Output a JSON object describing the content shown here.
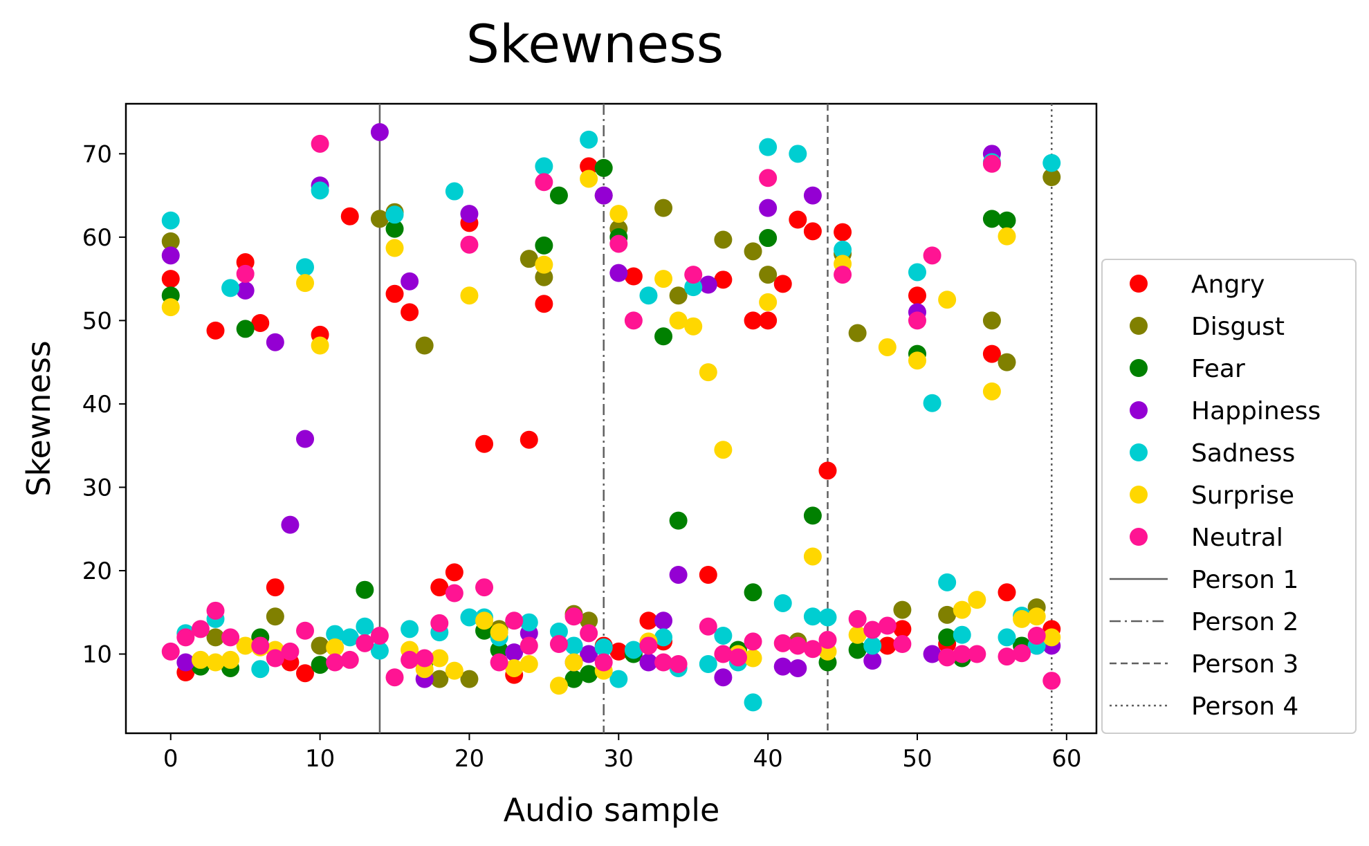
{
  "chart_data": {
    "type": "scatter",
    "title": "Skewness",
    "xlabel": "Audio sample",
    "ylabel": "Skewness",
    "xlim": [
      -3,
      62
    ],
    "ylim": [
      0.5,
      76
    ],
    "xticks": [
      0,
      10,
      20,
      30,
      40,
      50,
      60
    ],
    "yticks": [
      10,
      20,
      30,
      40,
      50,
      60,
      70
    ],
    "grid": false,
    "legend_position": "right-outside",
    "vlines": [
      {
        "name": "Person 1",
        "x": 14,
        "style": "solid"
      },
      {
        "name": "Person 2",
        "x": 29,
        "style": "dashdot"
      },
      {
        "name": "Person 3",
        "x": 44,
        "style": "dashed"
      },
      {
        "name": "Person 4",
        "x": 59,
        "style": "dotted"
      }
    ],
    "series": [
      {
        "name": "Angry",
        "color": "#ff0000",
        "x": [
          0,
          1,
          3,
          5,
          6,
          7,
          8,
          9,
          10,
          12,
          15,
          16,
          18,
          19,
          20,
          21,
          23,
          24,
          25,
          28,
          29,
          30,
          31,
          32,
          33,
          36,
          37,
          39,
          40,
          41,
          42,
          43,
          44,
          45,
          48,
          49,
          50,
          52,
          55,
          56,
          59
        ],
        "y": [
          55,
          7.8,
          48.8,
          57,
          49.7,
          18,
          9,
          7.7,
          48.3,
          62.5,
          53.2,
          51,
          18,
          19.8,
          61.7,
          35.2,
          7.5,
          35.7,
          52,
          68.5,
          11,
          10.3,
          55.3,
          14,
          11.5,
          19.5,
          54.9,
          50,
          50,
          54.4,
          62.1,
          60.7,
          32,
          60.6,
          11,
          13,
          53,
          11.2,
          46,
          17.4,
          13
        ]
      },
      {
        "name": "Disgust",
        "color": "#808000",
        "x": [
          0,
          3,
          7,
          10,
          14,
          15,
          17,
          18,
          20,
          22,
          24,
          25,
          27,
          28,
          29,
          30,
          33,
          34,
          37,
          39,
          40,
          42,
          45,
          46,
          49,
          52,
          55,
          56,
          58,
          59
        ],
        "y": [
          59.5,
          12,
          14.5,
          11,
          62.2,
          63,
          47,
          7,
          7,
          13,
          57.4,
          55.2,
          14.8,
          14,
          65,
          61,
          63.5,
          53,
          59.7,
          58.3,
          55.5,
          11.5,
          58,
          48.5,
          15.3,
          14.7,
          50,
          45,
          15.6,
          67.2
        ]
      },
      {
        "name": "Fear",
        "color": "#008000",
        "x": [
          0,
          2,
          4,
          5,
          6,
          10,
          13,
          15,
          17,
          21,
          22,
          25,
          26,
          27,
          28,
          29,
          30,
          31,
          33,
          34,
          38,
          39,
          40,
          43,
          44,
          46,
          50,
          52,
          53,
          55,
          56,
          57
        ],
        "y": [
          53,
          8.5,
          8.3,
          49,
          12,
          8.7,
          17.7,
          61,
          9,
          12.8,
          10.5,
          59,
          65,
          7,
          7.6,
          68.3,
          60,
          10,
          48.1,
          26,
          10.5,
          17.4,
          59.9,
          26.6,
          9,
          10.5,
          46,
          12,
          9.5,
          62.2,
          62,
          11
        ]
      },
      {
        "name": "Happiness",
        "color": "#9400d3",
        "x": [
          0,
          1,
          5,
          7,
          8,
          9,
          10,
          14,
          16,
          17,
          20,
          23,
          24,
          27,
          28,
          29,
          30,
          32,
          33,
          34,
          36,
          37,
          40,
          41,
          42,
          43,
          47,
          50,
          51,
          55,
          58,
          59
        ],
        "y": [
          57.8,
          9,
          53.6,
          47.4,
          25.5,
          35.8,
          66.2,
          72.6,
          54.7,
          7,
          62.8,
          10.2,
          12.5,
          9,
          10,
          65,
          55.7,
          9,
          14,
          19.5,
          54.3,
          7.2,
          63.5,
          8.5,
          8.3,
          65,
          9.2,
          51,
          10,
          70,
          11,
          11
        ]
      },
      {
        "name": "Sadness",
        "color": "#00ced1",
        "x": [
          0,
          1,
          3,
          4,
          6,
          9,
          10,
          11,
          12,
          13,
          14,
          15,
          16,
          18,
          19,
          20,
          21,
          22,
          24,
          25,
          26,
          27,
          28,
          29,
          30,
          31,
          32,
          33,
          34,
          35,
          36,
          37,
          38,
          39,
          40,
          41,
          42,
          43,
          44,
          45,
          47,
          50,
          51,
          52,
          53,
          55,
          56,
          57,
          58,
          59
        ],
        "y": [
          62,
          12.5,
          14.2,
          53.9,
          8.2,
          56.4,
          65.6,
          12.4,
          12,
          13.3,
          10.4,
          62.7,
          13,
          12.6,
          65.5,
          14.4,
          14.4,
          12,
          13.8,
          68.5,
          12.7,
          11,
          71.7,
          10.8,
          7,
          10.5,
          53,
          12,
          8.3,
          54,
          8.8,
          12.2,
          9,
          4.2,
          70.8,
          16.1,
          70,
          14.5,
          14.4,
          58.5,
          11,
          55.8,
          40.1,
          18.6,
          12.3,
          69,
          12,
          14.6,
          11,
          68.9
        ]
      },
      {
        "name": "Surprise",
        "color": "#ffd700",
        "x": [
          0,
          2,
          3,
          4,
          5,
          6,
          7,
          9,
          10,
          11,
          15,
          16,
          17,
          18,
          19,
          20,
          21,
          22,
          23,
          24,
          25,
          26,
          27,
          28,
          29,
          30,
          32,
          33,
          34,
          35,
          36,
          37,
          38,
          39,
          40,
          43,
          44,
          45,
          46,
          48,
          50,
          52,
          53,
          54,
          55,
          56,
          57,
          58,
          59
        ],
        "y": [
          51.6,
          9.3,
          9,
          9.3,
          11,
          10.8,
          10.5,
          54.5,
          47,
          10.8,
          58.7,
          10.5,
          8.2,
          9.5,
          8,
          53,
          14,
          12.6,
          8.3,
          8.8,
          56.7,
          6.2,
          9,
          67,
          8,
          62.8,
          11.5,
          55,
          50,
          49.3,
          43.8,
          34.5,
          10,
          9.5,
          52.2,
          21.7,
          10.3,
          56.8,
          12.3,
          46.8,
          45.2,
          52.5,
          15.3,
          16.5,
          41.5,
          60.1,
          14.2,
          14.5,
          12
        ]
      },
      {
        "name": "Neutral",
        "color": "#ff1493",
        "x": [
          0,
          1,
          2,
          3,
          4,
          5,
          6,
          7,
          8,
          9,
          10,
          11,
          12,
          13,
          14,
          15,
          16,
          17,
          18,
          19,
          20,
          21,
          22,
          23,
          24,
          25,
          26,
          27,
          28,
          29,
          30,
          31,
          32,
          33,
          34,
          35,
          36,
          37,
          38,
          39,
          40,
          41,
          42,
          43,
          44,
          45,
          46,
          47,
          48,
          49,
          50,
          51,
          52,
          53,
          54,
          55,
          56,
          57,
          58,
          59
        ],
        "y": [
          10.3,
          12,
          13,
          15.2,
          12,
          55.6,
          11,
          9.5,
          10.3,
          12.8,
          71.2,
          9,
          9.3,
          11.3,
          12.2,
          7.2,
          9.3,
          9.5,
          13.7,
          17.3,
          59.1,
          18,
          9,
          14,
          11,
          66.6,
          11.2,
          14.5,
          12.5,
          9,
          59.2,
          50,
          11,
          9,
          8.8,
          55.5,
          13.3,
          10,
          9.6,
          11.5,
          67.1,
          11.3,
          11,
          10.6,
          11.7,
          55.5,
          14.2,
          12.9,
          13.4,
          11.2,
          50,
          57.8,
          9.6,
          10,
          10,
          68.8,
          9.7,
          10.1,
          12.2,
          6.8
        ]
      }
    ]
  }
}
